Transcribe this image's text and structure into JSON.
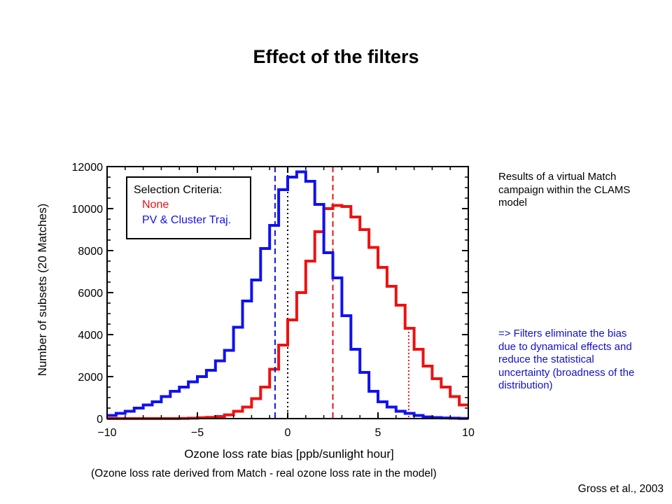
{
  "slide": {
    "title": "Effect of the filters",
    "note_top": "Results of a virtual Match campaign within the CLAMS model",
    "note_bottom": "=> Filters eliminate the bias due to dynamical effects and reduce the statistical uncertainty (broadness of the distribution)",
    "caption": "(Ozone loss rate derived from Match - real ozone loss rate in the model)",
    "citation": "Gross et al., 2003",
    "note_bottom_color": "#1010cc"
  },
  "chart_data": {
    "type": "line",
    "step": true,
    "title": "",
    "xlabel": "Ozone loss rate bias [ppb/sunlight hour]",
    "ylabel": "Number of subsets (20 Matches)",
    "xlim": [
      -10,
      10
    ],
    "ylim": [
      0,
      12000
    ],
    "x_ticks": [
      -10,
      -5,
      0,
      5,
      10
    ],
    "x_tick_labels": [
      "−10",
      "−5",
      "0",
      "5",
      "10"
    ],
    "y_ticks": [
      0,
      2000,
      4000,
      6000,
      8000,
      10000,
      12000
    ],
    "y_tick_labels": [
      "0",
      "2000",
      "4000",
      "6000",
      "8000",
      "10000",
      "12000"
    ],
    "grid": false,
    "legend": {
      "title": "Selection Criteria:",
      "placement": "top-left",
      "entries": [
        "None",
        "PV & Cluster Traj."
      ]
    },
    "x": [
      -10,
      -9.5,
      -9,
      -8.5,
      -8,
      -7.5,
      -7,
      -6.5,
      -6,
      -5.5,
      -5,
      -4.5,
      -4,
      -3.5,
      -3,
      -2.5,
      -2,
      -1.5,
      -1,
      -0.5,
      0,
      0.5,
      1,
      1.5,
      2,
      2.5,
      3,
      3.5,
      4,
      4.5,
      5,
      5.5,
      6,
      6.5,
      7,
      7.5,
      8,
      8.5,
      9,
      9.5
    ],
    "series": [
      {
        "name": "None",
        "color": "#ee1111",
        "values": [
          0,
          0,
          0,
          0,
          0,
          0,
          0,
          0,
          10,
          20,
          40,
          60,
          100,
          180,
          350,
          550,
          950,
          1500,
          2350,
          3500,
          4700,
          6000,
          7500,
          8900,
          10000,
          10150,
          10100,
          9600,
          9000,
          8150,
          7200,
          6300,
          5400,
          4300,
          3300,
          2500,
          1900,
          1500,
          1050,
          650
        ],
        "mean_line_x": 2.5,
        "extra_line_x": 6.7
      },
      {
        "name": "PV & Cluster Traj.",
        "color": "#1111ee",
        "values": [
          150,
          250,
          350,
          500,
          650,
          800,
          1050,
          1300,
          1500,
          1750,
          2000,
          2300,
          2750,
          3250,
          4350,
          5600,
          6600,
          8100,
          9200,
          10900,
          11500,
          11750,
          11300,
          10200,
          7900,
          6700,
          4900,
          3300,
          2200,
          1300,
          800,
          550,
          350,
          250,
          150,
          80,
          50,
          30,
          20,
          10
        ],
        "mean_line_x": -0.7
      }
    ],
    "zero_line_x": 0
  }
}
